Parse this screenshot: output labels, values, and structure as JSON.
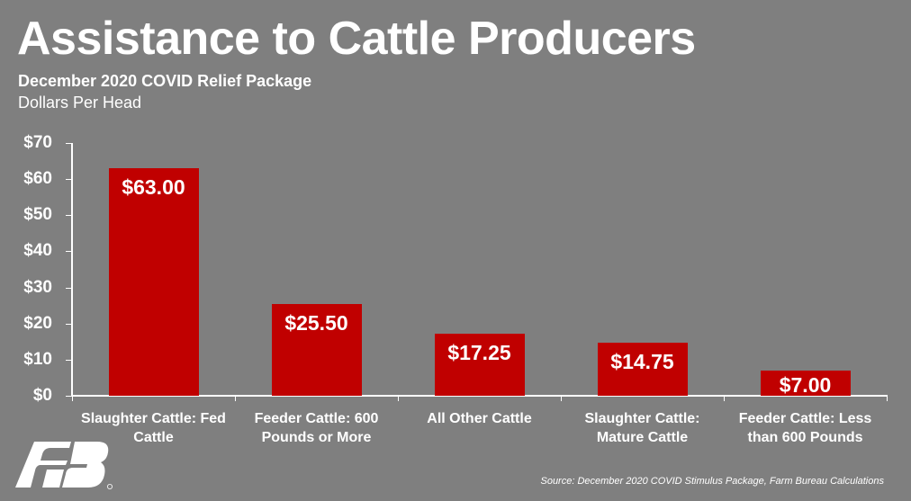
{
  "header": {
    "title": "Assistance to Cattle Producers",
    "subtitle": "December 2020 COVID Relief Package",
    "unit": "Dollars Per Head"
  },
  "colors": {
    "background": "#7f7f7f",
    "bar": "#c00000",
    "text": "#ffffff"
  },
  "y_axis": {
    "ticks": [
      "$0",
      "$10",
      "$20",
      "$30",
      "$40",
      "$50",
      "$60",
      "$70"
    ]
  },
  "bars": [
    {
      "category_line1": "Slaughter Cattle: Fed",
      "category_line2": "Cattle",
      "value": 63.0,
      "label": "$63.00"
    },
    {
      "category_line1": "Feeder Cattle: 600",
      "category_line2": "Pounds or More",
      "value": 25.5,
      "label": "$25.50"
    },
    {
      "category_line1": "All Other Cattle",
      "category_line2": "",
      "value": 17.25,
      "label": "$17.25"
    },
    {
      "category_line1": "Slaughter Cattle:",
      "category_line2": "Mature Cattle",
      "value": 14.75,
      "label": "$14.75"
    },
    {
      "category_line1": "Feeder Cattle: Less",
      "category_line2": "than 600 Pounds",
      "value": 7.0,
      "label": "$7.00"
    }
  ],
  "footer": {
    "source": "Source: December 2020 COVID Stimulus Package, Farm Bureau Calculations",
    "logo": "farm-bureau-logo"
  },
  "chart_data": {
    "type": "bar",
    "title": "Assistance to Cattle Producers",
    "subtitle": "December 2020 COVID Relief Package",
    "categories": [
      "Slaughter Cattle: Fed Cattle",
      "Feeder Cattle: 600 Pounds or More",
      "All Other Cattle",
      "Slaughter Cattle: Mature Cattle",
      "Feeder Cattle: Less than 600 Pounds"
    ],
    "values": [
      63.0,
      25.5,
      17.25,
      14.75,
      7.0
    ],
    "data_labels": [
      "$63.00",
      "$25.50",
      "$17.25",
      "$14.75",
      "$7.00"
    ],
    "xlabel": "",
    "ylabel": "Dollars Per Head",
    "ylim": [
      0,
      70
    ],
    "ytick_labels": [
      "$0",
      "$10",
      "$20",
      "$30",
      "$40",
      "$50",
      "$60",
      "$70"
    ],
    "grid": false,
    "legend": null,
    "annotations": [
      "Source: December 2020 COVID Stimulus Package, Farm Bureau Calculations"
    ]
  }
}
